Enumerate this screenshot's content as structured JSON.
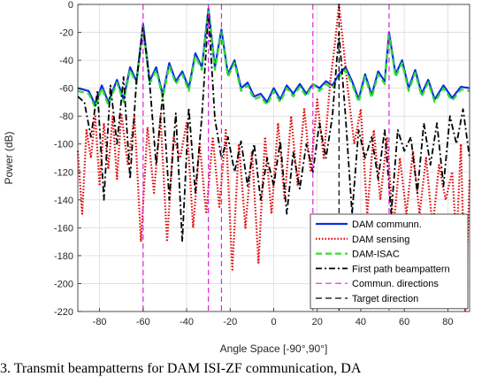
{
  "caption": "3.  Transmit beampatterns for DAM ISI-ZF communication, DA",
  "chart_data": {
    "type": "line",
    "xlabel": "Angle Space [-90°,90°]",
    "ylabel": "Power (dB)",
    "xlim": [
      -90,
      90
    ],
    "ylim": [
      -220,
      0
    ],
    "xticks": [
      -80,
      -60,
      -40,
      -20,
      0,
      20,
      40,
      60,
      80
    ],
    "yticks": [
      0,
      -20,
      -40,
      -60,
      -80,
      -100,
      -120,
      -140,
      -160,
      -180,
      -200,
      -220
    ],
    "grid": true,
    "legend_position": "bottom-right",
    "series": [
      {
        "name": "DAM communn.",
        "color": "#0b2ee0",
        "style": "solid",
        "x": [
          -90,
          -85,
          -82,
          -79,
          -76,
          -72,
          -69,
          -66,
          -63,
          -60,
          -57,
          -54,
          -51,
          -48,
          -45,
          -42,
          -39,
          -36,
          -33,
          -30,
          -27,
          -24,
          -21,
          -18,
          -15,
          -12,
          -9,
          -6,
          -3,
          0,
          3,
          6,
          9,
          12,
          15,
          18,
          21,
          24,
          27,
          30,
          33,
          36,
          39,
          42,
          45,
          48,
          51,
          53,
          56,
          59,
          62,
          65,
          68,
          71,
          74,
          78,
          82,
          86,
          90
        ],
        "y": [
          -60,
          -62,
          -72,
          -58,
          -70,
          -54,
          -68,
          -45,
          -55,
          -14,
          -55,
          -45,
          -65,
          -42,
          -55,
          -48,
          -60,
          -35,
          -45,
          -3,
          -45,
          -18,
          -50,
          -40,
          -60,
          -56,
          -66,
          -64,
          -70,
          -60,
          -68,
          -58,
          -64,
          -57,
          -64,
          -57,
          -60,
          -55,
          -58,
          -50,
          -45,
          -55,
          -68,
          -50,
          -65,
          -48,
          -55,
          -20,
          -50,
          -40,
          -60,
          -47,
          -64,
          -54,
          -68,
          -58,
          -67,
          -59,
          -60
        ]
      },
      {
        "name": "DAM sensing",
        "color": "#e00000",
        "style": "dotted",
        "x": [
          -90,
          -88,
          -86,
          -84,
          -82,
          -80,
          -78,
          -76,
          -74,
          -72,
          -70,
          -67,
          -64,
          -61,
          -58,
          -55,
          -52,
          -49,
          -46,
          -43,
          -40,
          -37,
          -34,
          -31,
          -28,
          -25,
          -22,
          -19,
          -16,
          -13,
          -10,
          -7,
          -4,
          -1,
          2,
          5,
          8,
          11,
          14,
          17,
          20,
          23,
          26,
          28,
          30,
          32,
          34,
          37,
          40,
          43,
          46,
          49,
          52,
          55,
          58,
          61,
          64,
          67,
          70,
          73,
          76,
          79,
          82,
          84,
          86,
          88,
          90
        ],
        "y": [
          -105,
          -150,
          -90,
          -110,
          -80,
          -130,
          -85,
          -118,
          -80,
          -125,
          -78,
          -115,
          -80,
          -170,
          -88,
          -135,
          -80,
          -170,
          -95,
          -110,
          -85,
          -160,
          -100,
          -150,
          -95,
          -145,
          -90,
          -190,
          -100,
          -160,
          -105,
          -185,
          -95,
          -150,
          -85,
          -140,
          -80,
          -130,
          -75,
          -120,
          -68,
          -110,
          -55,
          -30,
          0,
          -30,
          -60,
          -100,
          -75,
          -150,
          -90,
          -140,
          -95,
          -160,
          -110,
          -150,
          -105,
          -150,
          -110,
          -160,
          -115,
          -140,
          -120,
          -170,
          -100,
          -220,
          -125
        ]
      },
      {
        "name": "DAM-ISAC",
        "color": "#2ee02e",
        "style": "dashed",
        "x": [
          -90,
          -85,
          -82,
          -79,
          -76,
          -72,
          -69,
          -66,
          -63,
          -60,
          -57,
          -54,
          -51,
          -48,
          -45,
          -42,
          -39,
          -36,
          -33,
          -30,
          -27,
          -24,
          -21,
          -18,
          -15,
          -12,
          -9,
          -6,
          -3,
          0,
          3,
          6,
          9,
          12,
          15,
          18,
          21,
          24,
          27,
          30,
          33,
          36,
          39,
          42,
          45,
          48,
          51,
          53,
          56,
          59,
          62,
          65,
          68,
          71,
          74,
          78,
          82,
          86,
          90
        ],
        "y": [
          -62,
          -64,
          -74,
          -60,
          -72,
          -56,
          -70,
          -47,
          -57,
          -16,
          -57,
          -47,
          -67,
          -44,
          -57,
          -50,
          -62,
          -37,
          -47,
          -5,
          -47,
          -20,
          -52,
          -42,
          -62,
          -58,
          -68,
          -66,
          -72,
          -62,
          -70,
          -60,
          -66,
          -59,
          -66,
          -57,
          -62,
          -57,
          -60,
          -52,
          -47,
          -57,
          -70,
          -52,
          -67,
          -50,
          -57,
          -22,
          -52,
          -42,
          -62,
          -49,
          -66,
          -56,
          -70,
          -60,
          -69,
          -61,
          -62
        ]
      },
      {
        "name": "First path beampattern",
        "color": "#000000",
        "style": "dashdot",
        "x": [
          -90,
          -87,
          -84,
          -81,
          -78,
          -75,
          -72,
          -69,
          -66,
          -63,
          -60,
          -57,
          -54,
          -51,
          -48,
          -45,
          -42,
          -39,
          -36,
          -33,
          -30,
          -27,
          -24,
          -21,
          -18,
          -15,
          -12,
          -9,
          -6,
          -3,
          0,
          3,
          6,
          9,
          12,
          15,
          18,
          21,
          24,
          27,
          30,
          33,
          36,
          39,
          42,
          45,
          48,
          51,
          54,
          57,
          60,
          63,
          66,
          69,
          72,
          75,
          78,
          81,
          84,
          87,
          90
        ],
        "y": [
          -66,
          -70,
          -95,
          -62,
          -140,
          -58,
          -100,
          -52,
          -125,
          -54,
          -16,
          -56,
          -115,
          -64,
          -140,
          -78,
          -170,
          -74,
          -135,
          -80,
          -6,
          -82,
          -110,
          -95,
          -120,
          -98,
          -130,
          -100,
          -140,
          -110,
          -130,
          -98,
          -150,
          -106,
          -132,
          -100,
          -120,
          -85,
          -110,
          -80,
          -20,
          -80,
          -150,
          -90,
          -110,
          -95,
          -125,
          -90,
          -150,
          -90,
          -105,
          -95,
          -135,
          -85,
          -115,
          -85,
          -130,
          -80,
          -100,
          -75,
          -110
        ]
      }
    ],
    "reference_lines": [
      {
        "name": "Commun. directions",
        "color": "#e020e0",
        "style": "dashed",
        "x": [
          -60,
          -30,
          -24,
          18,
          53
        ]
      },
      {
        "name": "Target direction",
        "color": "#000000",
        "style": "dashed",
        "x": [
          30
        ]
      }
    ]
  }
}
